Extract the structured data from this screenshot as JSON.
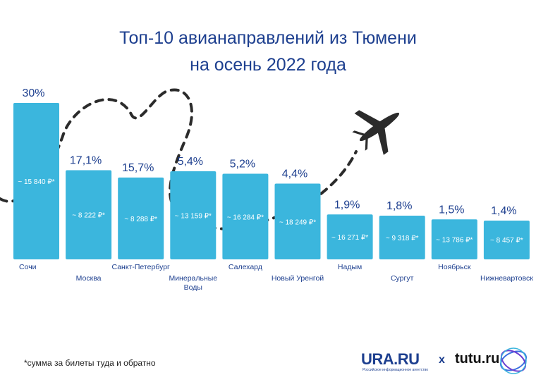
{
  "title_line1": "Топ-10 авианаправлений из Тюмени",
  "title_line2": "на осень 2022 года",
  "footnote": "*сумма за билеты туда и обратно",
  "brands": {
    "ura": "URA.RU",
    "ura_sub": "Российское информационное агентство",
    "separator": "x",
    "tutu": "tutu.ru"
  },
  "colors": {
    "bar": "#3bb6dd",
    "title": "#1d3f8f",
    "label": "#1d3f8f",
    "price": "#ffffff",
    "dashes": "#2b2b2b",
    "plane": "#2b2b2b"
  },
  "chart_data": {
    "type": "bar",
    "title": "Топ-10 авианаправлений из Тюмени на осень 2022 года",
    "xlabel": "",
    "ylabel": "",
    "ylim": [
      0,
      30
    ],
    "grid": false,
    "categories": [
      "Сочи",
      "Москва",
      "Санкт-Петербург",
      "Минеральные Воды",
      "Салехард",
      "Новый Уренгой",
      "Надым",
      "Сургут",
      "Ноябрьск",
      "Нижневартовск"
    ],
    "category_lines": [
      [
        "Сочи"
      ],
      [
        "Москва"
      ],
      [
        "Санкт-Петербург"
      ],
      [
        "Минеральные",
        "Воды"
      ],
      [
        "Салехард"
      ],
      [
        "Новый Уренгой"
      ],
      [
        "Надым"
      ],
      [
        "Сургут"
      ],
      [
        "Ноябрьск"
      ],
      [
        "Нижневартовск"
      ]
    ],
    "values": [
      30,
      17.1,
      15.7,
      5.4,
      5.2,
      4.4,
      1.9,
      1.8,
      1.5,
      1.4
    ],
    "value_labels": [
      "30%",
      "17,1%",
      "15,7%",
      "5,4%",
      "5,2%",
      "4,4%",
      "1,9%",
      "1,8%",
      "1,5%",
      "1,4%"
    ],
    "price_labels": [
      "~ 15 840 ₽*",
      "~ 8 222 ₽*",
      "~ 8 288 ₽*",
      "~ 13 159 ₽*",
      "~ 16 284 ₽*",
      "~ 18 249 ₽*",
      "~ 16 271 ₽*",
      "~ 9 318 ₽*",
      "~ 13 786 ₽*",
      "~ 8 457 ₽*"
    ]
  }
}
